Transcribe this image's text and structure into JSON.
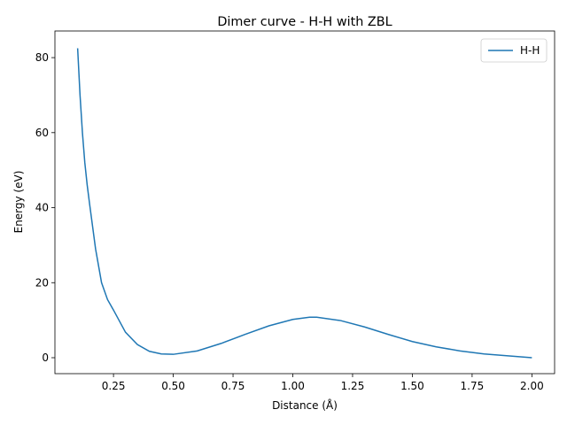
{
  "chart_data": {
    "type": "line",
    "title": "Dimer curve - H-H with ZBL",
    "x_label": "Distance (Å)",
    "y_label": "Energy (eV)",
    "x": [
      0.1,
      0.11,
      0.12,
      0.13,
      0.14,
      0.15,
      0.175,
      0.2,
      0.225,
      0.25,
      0.3,
      0.35,
      0.4,
      0.45,
      0.5,
      0.6,
      0.7,
      0.8,
      0.9,
      1.0,
      1.07,
      1.1,
      1.2,
      1.3,
      1.4,
      1.5,
      1.6,
      1.7,
      1.8,
      1.9,
      2.0
    ],
    "series": [
      {
        "name": "H-H",
        "color": "#1f77b4",
        "values": [
          82.5,
          70,
          60,
          52,
          46,
          41,
          29,
          20,
          15.5,
          12.7,
          6.8,
          3.5,
          1.7,
          1.0,
          0.9,
          1.8,
          3.8,
          6.2,
          8.5,
          10.2,
          10.8,
          10.8,
          9.9,
          8.2,
          6.2,
          4.3,
          2.9,
          1.8,
          1.0,
          0.5,
          0.0
        ]
      }
    ],
    "xlim": [
      0.005,
      2.095
    ],
    "ylim": [
      -4.25,
      87.1
    ],
    "xticks": [
      {
        "value": 0.25,
        "label": "0.25"
      },
      {
        "value": 0.5,
        "label": "0.50"
      },
      {
        "value": 0.75,
        "label": "0.75"
      },
      {
        "value": 1.0,
        "label": "1.00"
      },
      {
        "value": 1.25,
        "label": "1.25"
      },
      {
        "value": 1.5,
        "label": "1.50"
      },
      {
        "value": 1.75,
        "label": "1.75"
      },
      {
        "value": 2.0,
        "label": "2.00"
      }
    ],
    "yticks": [
      0,
      20,
      40,
      60,
      80
    ],
    "grid": false,
    "legend": "upper right"
  }
}
